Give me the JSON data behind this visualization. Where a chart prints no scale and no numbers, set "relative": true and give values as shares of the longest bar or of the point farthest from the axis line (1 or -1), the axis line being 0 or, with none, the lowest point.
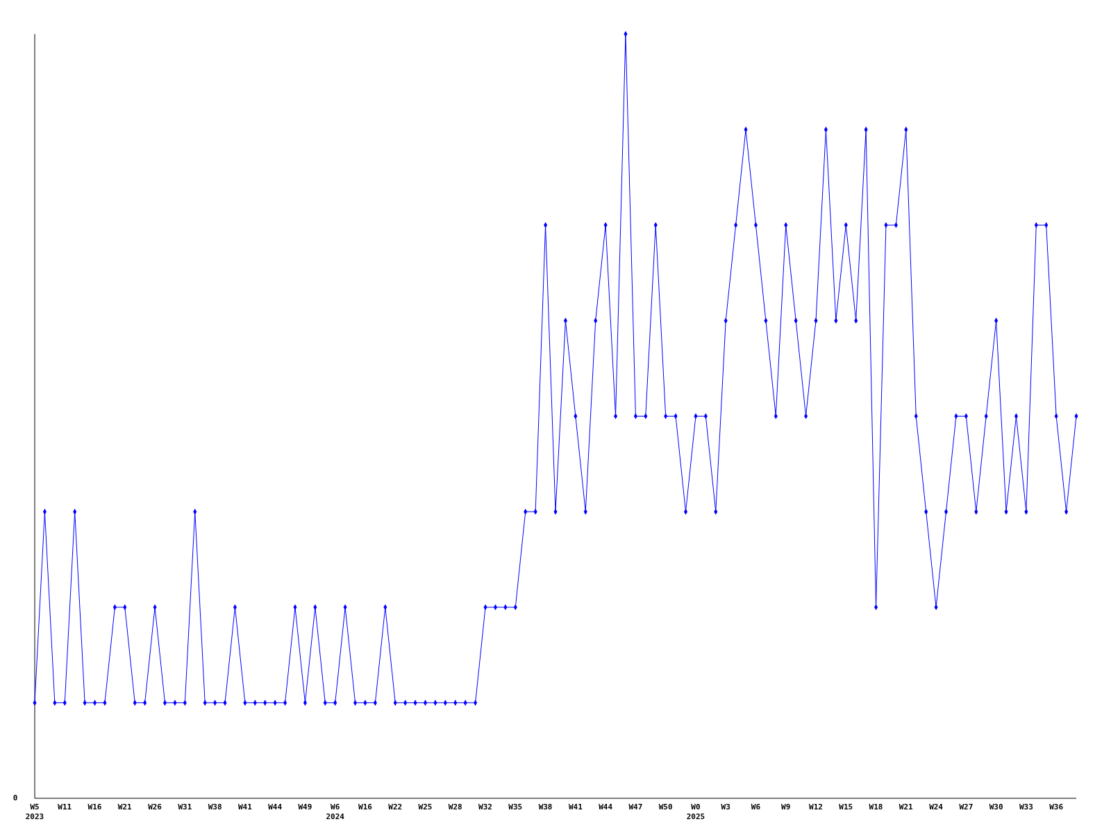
{
  "chart_data": {
    "type": "line",
    "relative": true,
    "color": "#0000ff",
    "marker": "diamond",
    "line_style": "solid",
    "categories": [
      "W5\n2023",
      null,
      null,
      "W11",
      null,
      null,
      "W16",
      null,
      null,
      "W21",
      null,
      null,
      "W26",
      null,
      null,
      "W31",
      null,
      null,
      "W38",
      null,
      null,
      "W41",
      null,
      null,
      "W44",
      null,
      null,
      "W49",
      null,
      null,
      "W6\n2024",
      null,
      null,
      "W16",
      null,
      null,
      "W22",
      null,
      null,
      "W25",
      null,
      null,
      "W28",
      null,
      null,
      "W32",
      null,
      null,
      "W35",
      null,
      null,
      "W38",
      null,
      null,
      "W41",
      null,
      null,
      "W44",
      null,
      null,
      "W47",
      null,
      null,
      "W50",
      null,
      null,
      "W0\n2025",
      null,
      null,
      "W3",
      null,
      null,
      "W6",
      null,
      null,
      "W9",
      null,
      null,
      "W12",
      null,
      null,
      "W15",
      null,
      null,
      "W18",
      null,
      null,
      "W21",
      null,
      null,
      "W24",
      null,
      null,
      "W27",
      null,
      null,
      "W30",
      null,
      null,
      "W33",
      null,
      null,
      "W36",
      null,
      null
    ],
    "values": [
      0.125,
      0.375,
      0.125,
      0.125,
      0.375,
      0.125,
      0.125,
      0.125,
      0.25,
      0.25,
      0.125,
      0.125,
      0.25,
      0.125,
      0.125,
      0.125,
      0.375,
      0.125,
      0.125,
      0.125,
      0.25,
      0.125,
      0.125,
      0.125,
      0.125,
      0.125,
      0.25,
      0.125,
      0.25,
      0.125,
      0.125,
      0.25,
      0.125,
      0.125,
      0.125,
      0.25,
      0.125,
      0.125,
      0.125,
      0.125,
      0.125,
      0.125,
      0.125,
      0.125,
      0.125,
      0.25,
      0.25,
      0.25,
      0.25,
      0.375,
      0.375,
      0.75,
      0.375,
      0.625,
      0.5,
      0.375,
      0.625,
      0.75,
      0.5,
      1,
      0.5,
      0.5,
      0.75,
      0.5,
      0.5,
      0.375,
      0.5,
      0.5,
      0.375,
      0.625,
      0.75,
      0.875,
      0.75,
      0.625,
      0.5,
      0.75,
      0.625,
      0.5,
      0.625,
      0.875,
      0.625,
      0.75,
      0.625,
      0.875,
      0.25,
      0.75,
      0.75,
      0.875,
      0.5,
      0.375,
      0.25,
      0.375,
      0.5,
      0.5,
      0.375,
      0.5,
      0.625,
      0.375,
      0.5,
      0.375,
      0.75,
      0.75,
      0.5,
      0.375,
      0.5
    ],
    "annotations": [
      "0"
    ]
  }
}
